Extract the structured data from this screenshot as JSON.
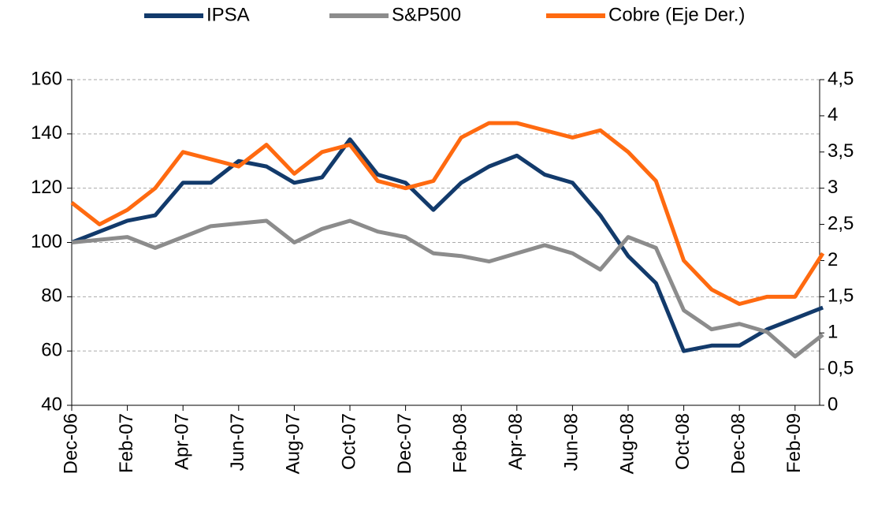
{
  "chart_data": {
    "type": "line",
    "categories": [
      "Dec-06",
      null,
      "Feb-07",
      null,
      "Apr-07",
      null,
      "Jun-07",
      null,
      "Aug-07",
      null,
      "Oct-07",
      null,
      "Dec-07",
      null,
      "Feb-08",
      null,
      "Apr-08",
      null,
      "Jun-08",
      null,
      "Aug-08",
      null,
      "Oct-08",
      null,
      "Dec-08",
      null,
      "Feb-09",
      null
    ],
    "series": [
      {
        "name": "IPSA",
        "color": "#123a6b",
        "values": [
          100,
          104,
          108,
          110,
          122,
          122,
          130,
          128,
          122,
          124,
          138,
          125,
          122,
          112,
          122,
          128,
          132,
          125,
          122,
          110,
          95,
          85,
          60,
          62,
          62,
          68,
          72,
          76
        ]
      },
      {
        "name": "S&P500",
        "color": "#8c8c8c",
        "values": [
          100,
          101,
          102,
          98,
          102,
          106,
          107,
          108,
          100,
          105,
          108,
          104,
          102,
          96,
          95,
          93,
          96,
          99,
          96,
          90,
          102,
          98,
          75,
          68,
          70,
          67,
          58,
          66
        ]
      },
      {
        "name": "Cobre (Eje Der.)",
        "color": "#ff6a10",
        "axis": "y2",
        "values": [
          2.8,
          2.5,
          2.7,
          3.0,
          3.5,
          3.4,
          3.3,
          3.6,
          3.2,
          3.5,
          3.6,
          3.1,
          3.0,
          3.1,
          3.7,
          3.9,
          3.9,
          3.8,
          3.7,
          3.8,
          3.5,
          3.1,
          2.0,
          1.6,
          1.4,
          1.5,
          1.5,
          2.1
        ]
      }
    ],
    "ylim": [
      40,
      160
    ],
    "yticks": [
      40,
      60,
      80,
      100,
      120,
      140,
      160
    ],
    "y2lim": [
      0,
      4.5
    ],
    "y2ticks": [
      0,
      {
        "value": 0.5,
        "label": "0,5"
      },
      1,
      {
        "value": 1.5,
        "label": "1,5"
      },
      2,
      {
        "value": 2.5,
        "label": "2,5"
      },
      3,
      {
        "value": 3.5,
        "label": "3,5"
      },
      4,
      {
        "value": 4.5,
        "label": "4,5"
      }
    ],
    "grid": true
  }
}
